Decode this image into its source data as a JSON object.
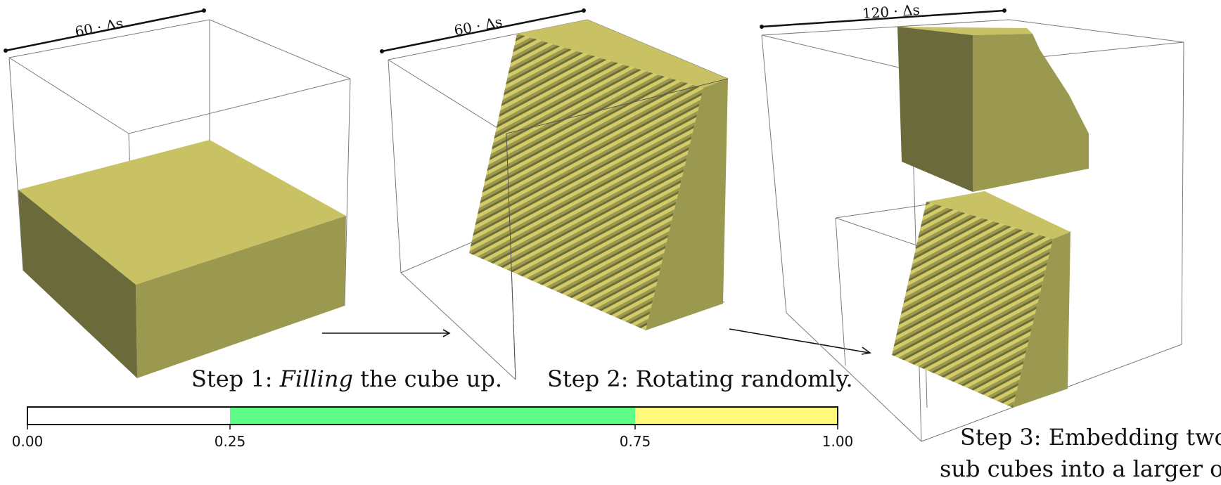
{
  "panels": [
    {
      "dimension_label": "60 · Δs",
      "caption_prefix": "Step 1: ",
      "caption_emph": "Filling",
      "caption_suffix": " the cube up."
    },
    {
      "dimension_label": "60 · Δs",
      "caption": "Step 2: Rotating randomly."
    },
    {
      "dimension_label": "120 · Δs",
      "caption_line1": "Step 3: Embedding two",
      "caption_line2": "sub cubes into a larger one."
    }
  ],
  "colorbar": {
    "ticks": [
      "0.00",
      "0.25",
      "0.75",
      "1.00"
    ],
    "segments": [
      {
        "from": 0.0,
        "to": 0.25,
        "color": "#ffffff"
      },
      {
        "from": 0.25,
        "to": 0.75,
        "color": "#5cfc85"
      },
      {
        "from": 0.75,
        "to": 1.0,
        "color": "#fdfa7a"
      }
    ]
  },
  "colors": {
    "solid_top": "#c8c264",
    "solid_front": "#9b984f",
    "solid_side": "#6b6a3b",
    "stair_top": "#d6cf6a",
    "stair_face": "#8a8744"
  }
}
